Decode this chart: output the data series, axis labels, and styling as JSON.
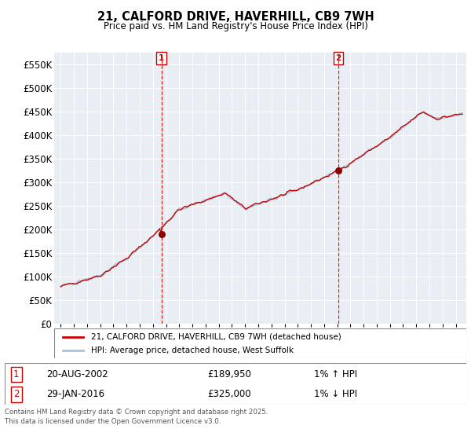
{
  "title": "21, CALFORD DRIVE, HAVERHILL, CB9 7WH",
  "subtitle": "Price paid vs. HM Land Registry's House Price Index (HPI)",
  "ylim": [
    0,
    575000
  ],
  "yticks": [
    0,
    50000,
    100000,
    150000,
    200000,
    250000,
    300000,
    350000,
    400000,
    450000,
    500000,
    550000
  ],
  "ytick_labels": [
    "£0",
    "£50K",
    "£100K",
    "£150K",
    "£200K",
    "£250K",
    "£300K",
    "£350K",
    "£400K",
    "£450K",
    "£500K",
    "£550K"
  ],
  "hpi_color": "#a8c4dc",
  "price_color": "#cc0000",
  "marker1_x": 2002.64,
  "marker1_y": 189950,
  "marker2_x": 2016.08,
  "marker2_y": 325000,
  "vline_color": "#cc0000",
  "background_color": "#e8eef4",
  "legend_entry1": "21, CALFORD DRIVE, HAVERHILL, CB9 7WH (detached house)",
  "legend_entry2": "HPI: Average price, detached house, West Suffolk",
  "footnote1": "Contains HM Land Registry data © Crown copyright and database right 2025.",
  "footnote2": "This data is licensed under the Open Government Licence v3.0.",
  "table_row1": [
    "1",
    "20-AUG-2002",
    "£189,950",
    "1% ↑ HPI"
  ],
  "table_row2": [
    "2",
    "29-JAN-2016",
    "£325,000",
    "1% ↓ HPI"
  ],
  "xmin": 1994.5,
  "xmax": 2025.8
}
